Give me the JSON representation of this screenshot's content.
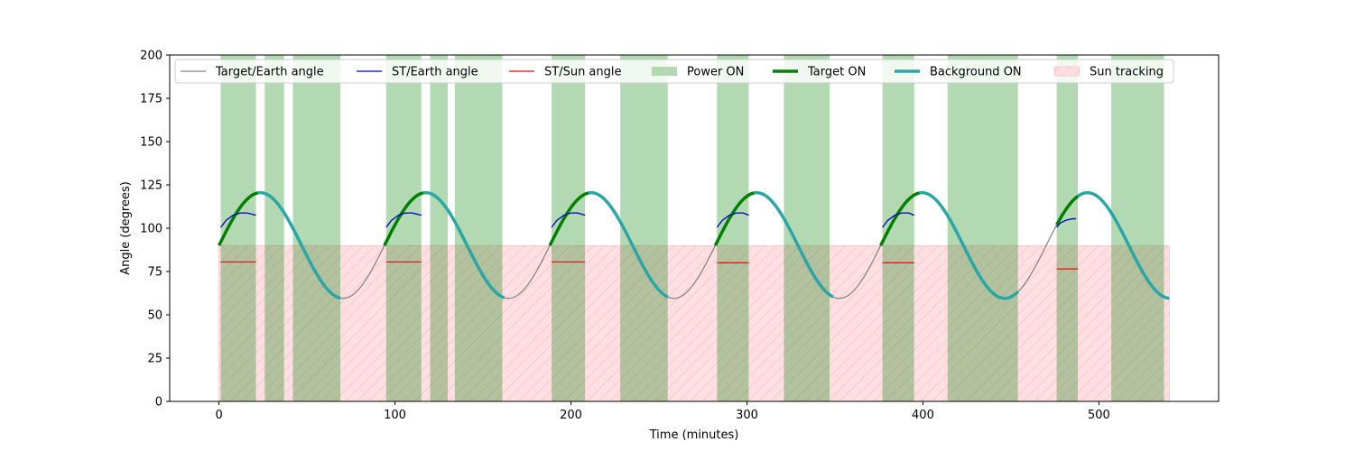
{
  "chart_data": {
    "type": "line",
    "title": "",
    "xlabel": "Time (minutes)",
    "ylabel": "Angle (degrees)",
    "xlim": [
      -28,
      568
    ],
    "ylim": [
      0,
      200
    ],
    "x_ticks": [
      0,
      100,
      200,
      300,
      400,
      500
    ],
    "y_ticks": [
      0,
      25,
      50,
      75,
      100,
      125,
      150,
      175,
      200
    ],
    "grid": false,
    "legend_position": "top",
    "legend": [
      {
        "label": "Target/Earth angle",
        "style": "line",
        "color": "#808080"
      },
      {
        "label": "ST/Earth angle",
        "style": "line",
        "color": "#0000cc"
      },
      {
        "label": "ST/Sun angle",
        "style": "line",
        "color": "#ff0000"
      },
      {
        "label": "Power ON",
        "style": "patch",
        "color": "#b3d9b3"
      },
      {
        "label": "Target ON",
        "style": "thickline",
        "color": "#008000"
      },
      {
        "label": "Background ON",
        "style": "thickline",
        "color": "#2aa6a6"
      },
      {
        "label": "Sun tracking",
        "style": "hatched",
        "color": "#ffdfe2"
      }
    ],
    "target_earth_angle": {
      "name": "Target/Earth angle",
      "period_minutes": 94,
      "start_minute": 0,
      "end_minute": 540,
      "mean_degrees": 90,
      "amplitude_degrees": 30.5,
      "peak_minute": 23.5
    },
    "power_on_intervals": [
      [
        1,
        21
      ],
      [
        26,
        37
      ],
      [
        42,
        69
      ],
      [
        95,
        115
      ],
      [
        120,
        130
      ],
      [
        134,
        161
      ],
      [
        189,
        208
      ],
      [
        228,
        255
      ],
      [
        283,
        301
      ],
      [
        321,
        347
      ],
      [
        377,
        395
      ],
      [
        414,
        454
      ],
      [
        476,
        488
      ],
      [
        507,
        537
      ]
    ],
    "target_on_intervals": [
      [
        0,
        22
      ],
      [
        94,
        116
      ],
      [
        188,
        210
      ],
      [
        282,
        304
      ],
      [
        376,
        398
      ],
      [
        476,
        488
      ]
    ],
    "background_on_intervals": [
      [
        22,
        69
      ],
      [
        116,
        162
      ],
      [
        210,
        255
      ],
      [
        304,
        349
      ],
      [
        398,
        454
      ],
      [
        488,
        540
      ]
    ],
    "sun_tracking_intervals": [
      [
        0,
        540
      ]
    ],
    "sun_tracking_height_degrees": 90,
    "st_earth_angle_segments": [
      {
        "x": [
          1,
          4,
          8,
          12,
          16,
          21
        ],
        "y": [
          100.5,
          104.5,
          107.5,
          108.8,
          108.8,
          107.5
        ]
      },
      {
        "x": [
          95,
          98,
          102,
          106,
          110,
          115
        ],
        "y": [
          100.5,
          104.5,
          107.5,
          108.8,
          108.8,
          107.5
        ]
      },
      {
        "x": [
          189,
          192,
          196,
          200,
          204,
          208
        ],
        "y": [
          100.5,
          104.5,
          107.5,
          108.8,
          108.8,
          107.5
        ]
      },
      {
        "x": [
          283,
          286,
          290,
          294,
          298,
          301
        ],
        "y": [
          100.5,
          104.5,
          107.5,
          108.8,
          108.8,
          107.5
        ]
      },
      {
        "x": [
          377,
          380,
          384,
          388,
          392,
          395
        ],
        "y": [
          100.5,
          104.5,
          107.5,
          108.8,
          108.8,
          107.5
        ]
      },
      {
        "x": [
          476,
          478,
          481,
          484,
          487
        ],
        "y": [
          100.5,
          103,
          104.5,
          105.3,
          105.5
        ]
      }
    ],
    "st_sun_angle_segments": [
      {
        "x": [
          1,
          21
        ],
        "y": [
          80.5,
          80.5
        ]
      },
      {
        "x": [
          95,
          115
        ],
        "y": [
          80.5,
          80.5
        ]
      },
      {
        "x": [
          189,
          208
        ],
        "y": [
          80.5,
          80.5
        ]
      },
      {
        "x": [
          283,
          301
        ],
        "y": [
          80,
          80
        ]
      },
      {
        "x": [
          377,
          395
        ],
        "y": [
          80,
          80
        ]
      },
      {
        "x": [
          476,
          488
        ],
        "y": [
          76.5,
          76.5
        ]
      }
    ]
  }
}
